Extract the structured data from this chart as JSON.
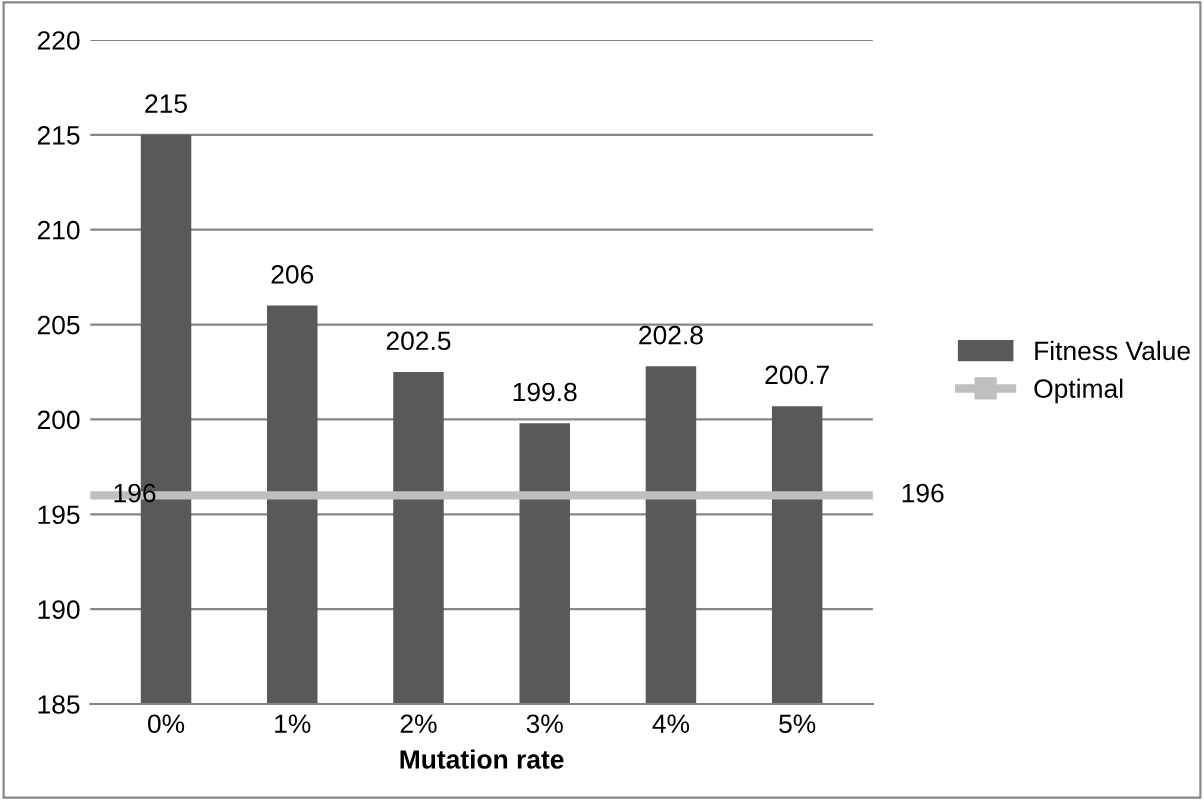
{
  "chart_data": {
    "type": "bar",
    "xlabel": "Mutation rate",
    "categories": [
      "0%",
      "1%",
      "2%",
      "3%",
      "4%",
      "5%"
    ],
    "series": [
      {
        "name": "Fitness Value",
        "color": "#595959",
        "values": [
          215,
          206,
          202.5,
          199.8,
          202.8,
          200.7
        ]
      }
    ],
    "ref_lines": [
      {
        "axis": "y",
        "value": 196,
        "label": "Optimal",
        "color": "#bfbfbf"
      }
    ],
    "annotations": [
      "196",
      "196"
    ],
    "data_labels": true,
    "ylim": [
      185,
      220
    ],
    "yticks": [
      185,
      190,
      195,
      200,
      205,
      210,
      215,
      220
    ],
    "grid": "y",
    "legend": "right",
    "marker": "square"
  }
}
